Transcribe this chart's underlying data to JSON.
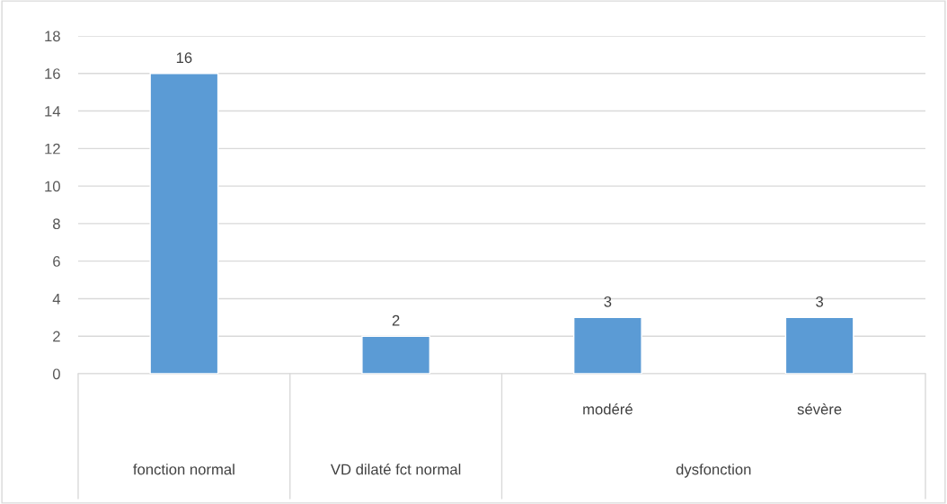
{
  "chart_data": {
    "type": "bar",
    "categories": [
      "fonction normal",
      "VD dilaté fct normal",
      "modéré",
      "sévère"
    ],
    "values": [
      16,
      2,
      3,
      3
    ],
    "color": "#5b9bd5",
    "ylim": [
      0,
      18
    ],
    "yticks": [
      0,
      2,
      4,
      6,
      8,
      10,
      12,
      14,
      16,
      18
    ],
    "grid": "y",
    "data_labels": true,
    "annotations": [
      "dysfonction"
    ]
  }
}
